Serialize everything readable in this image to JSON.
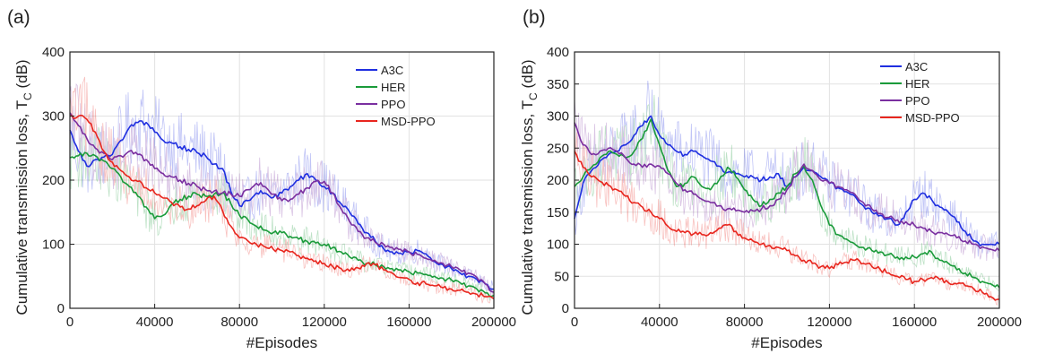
{
  "chart_data": [
    {
      "type": "line",
      "panel_label": "(a)",
      "xlabel": "#Episodes",
      "ylabel_main": "Cumulative transmission loss, T",
      "ylabel_sub": "C",
      "ylabel_unit": " (dB)",
      "xlim": [
        0,
        200000
      ],
      "ylim": [
        0,
        400
      ],
      "xticks": [
        0,
        40000,
        80000,
        120000,
        160000,
        200000
      ],
      "yticks": [
        0,
        100,
        200,
        300,
        400
      ],
      "grid": true,
      "legend_position": "top-right",
      "series": [
        {
          "name": "A3C",
          "color": "#1f2fe0",
          "x": [
            0,
            4000,
            8000,
            12000,
            16000,
            20000,
            24000,
            28000,
            32000,
            36000,
            40000,
            44000,
            48000,
            52000,
            56000,
            60000,
            64000,
            68000,
            72000,
            76000,
            80000,
            84000,
            88000,
            92000,
            96000,
            100000,
            104000,
            108000,
            112000,
            116000,
            120000,
            124000,
            128000,
            132000,
            136000,
            140000,
            144000,
            148000,
            152000,
            156000,
            160000,
            164000,
            168000,
            172000,
            176000,
            180000,
            184000,
            188000,
            192000,
            196000,
            200000
          ],
          "y": [
            278,
            245,
            222,
            232,
            236,
            240,
            262,
            282,
            290,
            290,
            275,
            262,
            258,
            252,
            248,
            243,
            238,
            225,
            218,
            182,
            160,
            168,
            180,
            180,
            173,
            180,
            190,
            200,
            210,
            200,
            190,
            180,
            163,
            150,
            132,
            118,
            105,
            93,
            88,
            86,
            88,
            90,
            85,
            73,
            68,
            62,
            55,
            50,
            45,
            38,
            30
          ]
        },
        {
          "name": "HER",
          "color": "#1a9b3a",
          "x": [
            0,
            4000,
            8000,
            12000,
            16000,
            20000,
            24000,
            28000,
            32000,
            36000,
            40000,
            44000,
            48000,
            52000,
            56000,
            60000,
            64000,
            68000,
            72000,
            76000,
            80000,
            84000,
            88000,
            92000,
            96000,
            100000,
            104000,
            108000,
            112000,
            116000,
            120000,
            124000,
            128000,
            132000,
            136000,
            140000,
            144000,
            148000,
            152000,
            156000,
            160000,
            164000,
            168000,
            172000,
            176000,
            180000,
            184000,
            188000,
            192000,
            196000,
            200000
          ],
          "y": [
            235,
            238,
            242,
            238,
            230,
            218,
            205,
            190,
            175,
            158,
            140,
            145,
            162,
            170,
            175,
            178,
            175,
            178,
            180,
            163,
            145,
            138,
            128,
            122,
            118,
            118,
            112,
            108,
            104,
            102,
            100,
            95,
            88,
            80,
            75,
            70,
            68,
            65,
            62,
            60,
            57,
            55,
            53,
            50,
            47,
            44,
            40,
            35,
            30,
            24,
            20
          ]
        },
        {
          "name": "PPO",
          "color": "#7a2fa0",
          "x": [
            0,
            4000,
            8000,
            12000,
            16000,
            20000,
            24000,
            28000,
            32000,
            36000,
            40000,
            44000,
            48000,
            52000,
            56000,
            60000,
            64000,
            68000,
            72000,
            76000,
            80000,
            84000,
            88000,
            92000,
            96000,
            100000,
            104000,
            108000,
            112000,
            116000,
            120000,
            124000,
            128000,
            132000,
            136000,
            140000,
            144000,
            148000,
            152000,
            156000,
            160000,
            164000,
            168000,
            172000,
            176000,
            180000,
            184000,
            188000,
            192000,
            196000,
            200000
          ],
          "y": [
            305,
            285,
            265,
            250,
            242,
            232,
            238,
            245,
            240,
            232,
            218,
            210,
            205,
            200,
            195,
            190,
            185,
            183,
            180,
            178,
            175,
            185,
            195,
            190,
            178,
            168,
            170,
            178,
            188,
            198,
            198,
            180,
            155,
            135,
            120,
            110,
            103,
            100,
            95,
            92,
            88,
            84,
            78,
            75,
            70,
            65,
            60,
            55,
            48,
            38,
            25
          ]
        },
        {
          "name": "MSD-PPO",
          "color": "#e8261e",
          "x": [
            0,
            4000,
            8000,
            12000,
            16000,
            20000,
            24000,
            28000,
            32000,
            36000,
            40000,
            44000,
            48000,
            52000,
            56000,
            60000,
            64000,
            68000,
            72000,
            76000,
            80000,
            84000,
            88000,
            92000,
            96000,
            100000,
            104000,
            108000,
            112000,
            116000,
            120000,
            124000,
            128000,
            132000,
            136000,
            140000,
            144000,
            148000,
            152000,
            156000,
            160000,
            164000,
            168000,
            172000,
            176000,
            180000,
            184000,
            188000,
            192000,
            196000,
            200000
          ],
          "y": [
            300,
            300,
            295,
            275,
            245,
            228,
            215,
            205,
            198,
            188,
            180,
            172,
            165,
            158,
            155,
            160,
            168,
            175,
            152,
            128,
            110,
            105,
            100,
            96,
            92,
            90,
            88,
            82,
            78,
            74,
            70,
            65,
            62,
            58,
            63,
            70,
            68,
            60,
            55,
            48,
            45,
            40,
            38,
            35,
            32,
            30,
            28,
            25,
            22,
            18,
            15
          ]
        }
      ]
    },
    {
      "type": "line",
      "panel_label": "(b)",
      "xlabel": "#Episodes",
      "ylabel_main": "Cumulative transmission loss, T",
      "ylabel_sub": "C",
      "ylabel_unit": " (dB)",
      "xlim": [
        0,
        200000
      ],
      "ylim": [
        0,
        400
      ],
      "xticks": [
        0,
        40000,
        80000,
        120000,
        160000,
        200000
      ],
      "yticks": [
        0,
        50,
        100,
        150,
        200,
        250,
        300,
        350,
        400
      ],
      "grid": true,
      "legend_position": "top-right",
      "series": [
        {
          "name": "A3C",
          "color": "#1f2fe0",
          "x": [
            0,
            4000,
            8000,
            12000,
            16000,
            20000,
            24000,
            28000,
            32000,
            36000,
            40000,
            44000,
            48000,
            52000,
            56000,
            60000,
            64000,
            68000,
            72000,
            76000,
            80000,
            84000,
            88000,
            92000,
            96000,
            100000,
            104000,
            108000,
            112000,
            116000,
            120000,
            124000,
            128000,
            132000,
            136000,
            140000,
            144000,
            148000,
            152000,
            156000,
            160000,
            164000,
            168000,
            172000,
            176000,
            180000,
            184000,
            188000,
            192000,
            196000,
            200000
          ],
          "y": [
            140,
            195,
            215,
            230,
            240,
            245,
            255,
            270,
            285,
            300,
            270,
            255,
            245,
            240,
            245,
            238,
            230,
            222,
            212,
            210,
            205,
            205,
            200,
            205,
            210,
            190,
            205,
            220,
            215,
            205,
            195,
            188,
            182,
            175,
            160,
            150,
            145,
            140,
            130,
            150,
            170,
            180,
            170,
            158,
            150,
            135,
            120,
            105,
            100,
            100,
            100
          ]
        },
        {
          "name": "HER",
          "color": "#1a9b3a",
          "x": [
            0,
            4000,
            8000,
            12000,
            16000,
            20000,
            24000,
            28000,
            32000,
            36000,
            40000,
            44000,
            48000,
            52000,
            56000,
            60000,
            64000,
            68000,
            72000,
            76000,
            80000,
            84000,
            88000,
            92000,
            96000,
            100000,
            104000,
            108000,
            112000,
            116000,
            120000,
            124000,
            128000,
            132000,
            136000,
            140000,
            144000,
            148000,
            152000,
            156000,
            160000,
            164000,
            168000,
            172000,
            176000,
            180000,
            184000,
            188000,
            192000,
            196000,
            200000
          ],
          "y": [
            190,
            205,
            220,
            235,
            245,
            240,
            235,
            245,
            265,
            295,
            255,
            215,
            190,
            195,
            205,
            190,
            185,
            200,
            220,
            205,
            185,
            170,
            160,
            170,
            180,
            190,
            210,
            222,
            200,
            160,
            130,
            115,
            108,
            100,
            95,
            90,
            88,
            84,
            80,
            80,
            80,
            85,
            88,
            75,
            70,
            60,
            55,
            48,
            42,
            38,
            32
          ]
        },
        {
          "name": "PPO",
          "color": "#7a2fa0",
          "x": [
            0,
            4000,
            8000,
            12000,
            16000,
            20000,
            24000,
            28000,
            32000,
            36000,
            40000,
            44000,
            48000,
            52000,
            56000,
            60000,
            64000,
            68000,
            72000,
            76000,
            80000,
            84000,
            88000,
            92000,
            96000,
            100000,
            104000,
            108000,
            112000,
            116000,
            120000,
            124000,
            128000,
            132000,
            136000,
            140000,
            144000,
            148000,
            152000,
            156000,
            160000,
            164000,
            168000,
            172000,
            176000,
            180000,
            184000,
            188000,
            192000,
            196000,
            200000
          ],
          "y": [
            290,
            255,
            240,
            245,
            250,
            245,
            235,
            225,
            220,
            225,
            222,
            210,
            195,
            185,
            178,
            170,
            165,
            160,
            155,
            152,
            150,
            152,
            155,
            160,
            170,
            185,
            205,
            225,
            215,
            200,
            195,
            190,
            185,
            178,
            165,
            155,
            148,
            142,
            138,
            135,
            130,
            125,
            120,
            118,
            115,
            110,
            105,
            100,
            96,
            92,
            90
          ]
        },
        {
          "name": "MSD-PPO",
          "color": "#e8261e",
          "x": [
            0,
            4000,
            8000,
            12000,
            16000,
            20000,
            24000,
            28000,
            32000,
            36000,
            40000,
            44000,
            48000,
            52000,
            56000,
            60000,
            64000,
            68000,
            72000,
            76000,
            80000,
            84000,
            88000,
            92000,
            96000,
            100000,
            104000,
            108000,
            112000,
            116000,
            120000,
            124000,
            128000,
            132000,
            136000,
            140000,
            144000,
            148000,
            152000,
            156000,
            160000,
            164000,
            168000,
            172000,
            176000,
            180000,
            184000,
            188000,
            192000,
            196000,
            200000
          ],
          "y": [
            245,
            220,
            205,
            198,
            192,
            185,
            175,
            165,
            158,
            150,
            140,
            128,
            120,
            118,
            116,
            115,
            118,
            125,
            130,
            120,
            110,
            105,
            100,
            98,
            95,
            90,
            82,
            75,
            70,
            65,
            62,
            68,
            72,
            75,
            70,
            65,
            60,
            55,
            50,
            45,
            42,
            45,
            48,
            45,
            40,
            38,
            35,
            30,
            25,
            18,
            14
          ]
        }
      ]
    }
  ]
}
